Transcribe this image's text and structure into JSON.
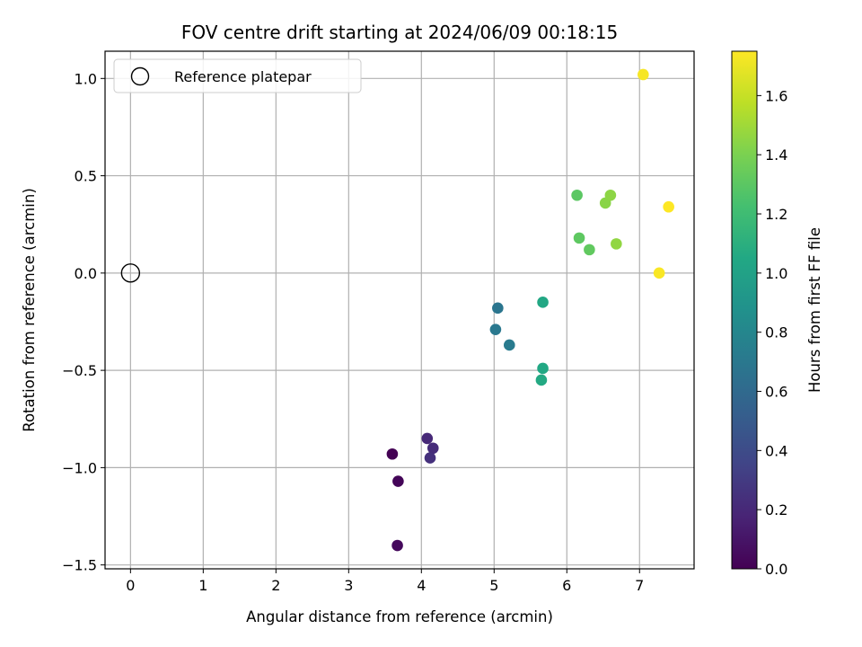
{
  "chart_data": {
    "type": "scatter",
    "title": "FOV centre drift starting at 2024/06/09 00:18:15",
    "xlabel": "Angular distance from reference (arcmin)",
    "ylabel": "Rotation from reference (arcmin)",
    "xlim": [
      -0.35,
      7.75
    ],
    "ylim": [
      -1.52,
      1.14
    ],
    "xticks": [
      0,
      1,
      2,
      3,
      4,
      5,
      6,
      7
    ],
    "xtick_labels": [
      "0",
      "1",
      "2",
      "3",
      "4",
      "5",
      "6",
      "7"
    ],
    "yticks": [
      -1.5,
      -1.0,
      -0.5,
      0.0,
      0.5,
      1.0
    ],
    "ytick_labels": [
      "−1.5",
      "−1.0",
      "−0.5",
      "0.0",
      "0.5",
      "1.0"
    ],
    "grid": true,
    "colormap": "viridis",
    "colorbar": {
      "label": "Hours from first FF file",
      "range": [
        0.0,
        1.75
      ],
      "ticks": [
        0.0,
        0.2,
        0.4,
        0.6,
        0.8,
        1.0,
        1.2,
        1.4,
        1.6
      ],
      "tick_labels": [
        "0.0",
        "0.2",
        "0.4",
        "0.6",
        "0.8",
        "1.0",
        "1.2",
        "1.4",
        "1.6"
      ]
    },
    "legend": {
      "location": "top-left",
      "entries": [
        {
          "label": "Reference platepar",
          "marker": "open-circle"
        }
      ]
    },
    "reference_point": {
      "x": 0.0,
      "y": 0.0
    },
    "points": [
      {
        "x": 3.6,
        "y": -0.93,
        "hours": 0.0
      },
      {
        "x": 3.68,
        "y": -1.07,
        "hours": 0.02
      },
      {
        "x": 3.67,
        "y": -1.4,
        "hours": 0.04
      },
      {
        "x": 4.08,
        "y": -0.85,
        "hours": 0.2
      },
      {
        "x": 4.16,
        "y": -0.9,
        "hours": 0.22
      },
      {
        "x": 4.12,
        "y": -0.95,
        "hours": 0.24
      },
      {
        "x": 5.05,
        "y": -0.18,
        "hours": 0.68
      },
      {
        "x": 5.02,
        "y": -0.29,
        "hours": 0.7
      },
      {
        "x": 5.21,
        "y": -0.37,
        "hours": 0.72
      },
      {
        "x": 5.67,
        "y": -0.15,
        "hours": 1.04
      },
      {
        "x": 5.67,
        "y": -0.49,
        "hours": 1.05
      },
      {
        "x": 5.65,
        "y": -0.55,
        "hours": 1.06
      },
      {
        "x": 6.14,
        "y": 0.4,
        "hours": 1.3
      },
      {
        "x": 6.17,
        "y": 0.18,
        "hours": 1.31
      },
      {
        "x": 6.31,
        "y": 0.12,
        "hours": 1.32
      },
      {
        "x": 6.53,
        "y": 0.36,
        "hours": 1.44
      },
      {
        "x": 6.6,
        "y": 0.4,
        "hours": 1.45
      },
      {
        "x": 6.68,
        "y": 0.15,
        "hours": 1.46
      },
      {
        "x": 7.05,
        "y": 1.02,
        "hours": 1.73
      },
      {
        "x": 7.27,
        "y": 0.0,
        "hours": 1.74
      },
      {
        "x": 7.4,
        "y": 0.34,
        "hours": 1.75
      }
    ]
  }
}
